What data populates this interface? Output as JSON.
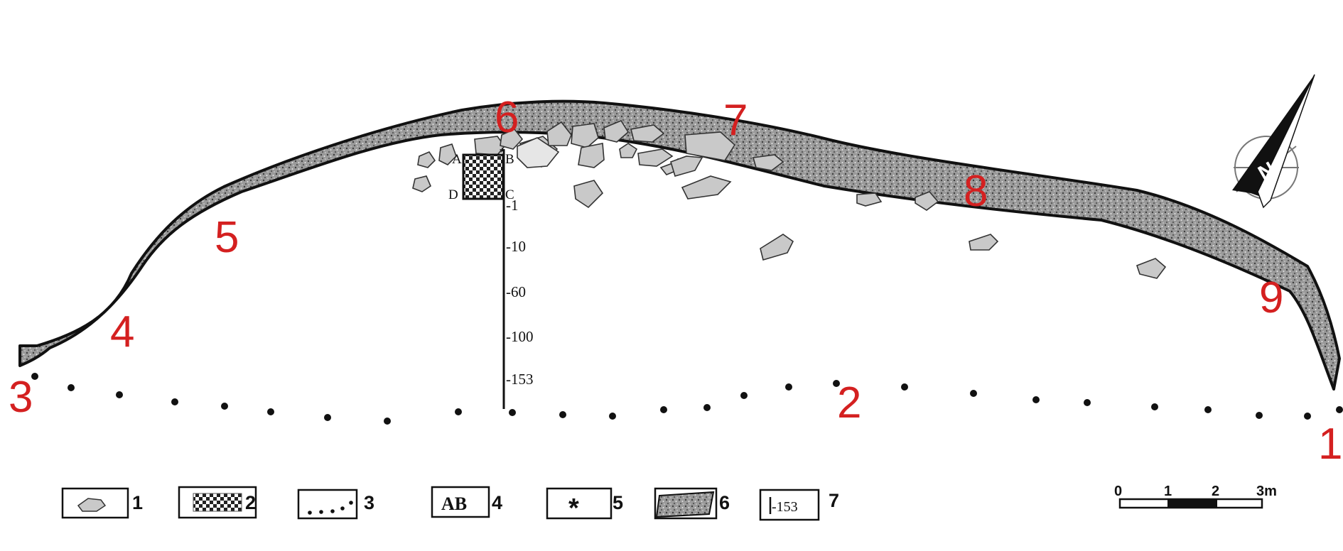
{
  "wall_points": [
    {
      "label": "1"
    },
    {
      "label": "2"
    },
    {
      "label": "3"
    },
    {
      "label": "4"
    },
    {
      "label": "5"
    },
    {
      "label": "6"
    },
    {
      "label": "7"
    },
    {
      "label": "8"
    },
    {
      "label": "9"
    }
  ],
  "pit": {
    "corners": [
      "A",
      "B",
      "C",
      "D"
    ]
  },
  "depths": [
    "-1",
    "-10",
    "-60",
    "-100",
    "-153"
  ],
  "legend": [
    {
      "num": "1",
      "icon": "stone-icon"
    },
    {
      "num": "2",
      "icon": "pit-hatch-icon"
    },
    {
      "num": "3",
      "icon": "dotted-line-icon",
      "sample": "...."
    },
    {
      "num": "4",
      "icon": "section-letters-icon",
      "sample": "AB"
    },
    {
      "num": "5",
      "icon": "asterisk-icon",
      "sample": "*"
    },
    {
      "num": "6",
      "icon": "wall-band-icon"
    },
    {
      "num": "7",
      "icon": "depth-mark-icon",
      "sample": "-153"
    }
  ],
  "scale_bar": {
    "ticks": [
      "0",
      "1",
      "2",
      "3m"
    ]
  },
  "north_arrow": {
    "icon": "north-arrow-icon",
    "letter": "N"
  },
  "colors": {
    "labels": "#d42020",
    "stone_fill": "#c9c9c9",
    "wall_fill": "#8a8a8a"
  }
}
